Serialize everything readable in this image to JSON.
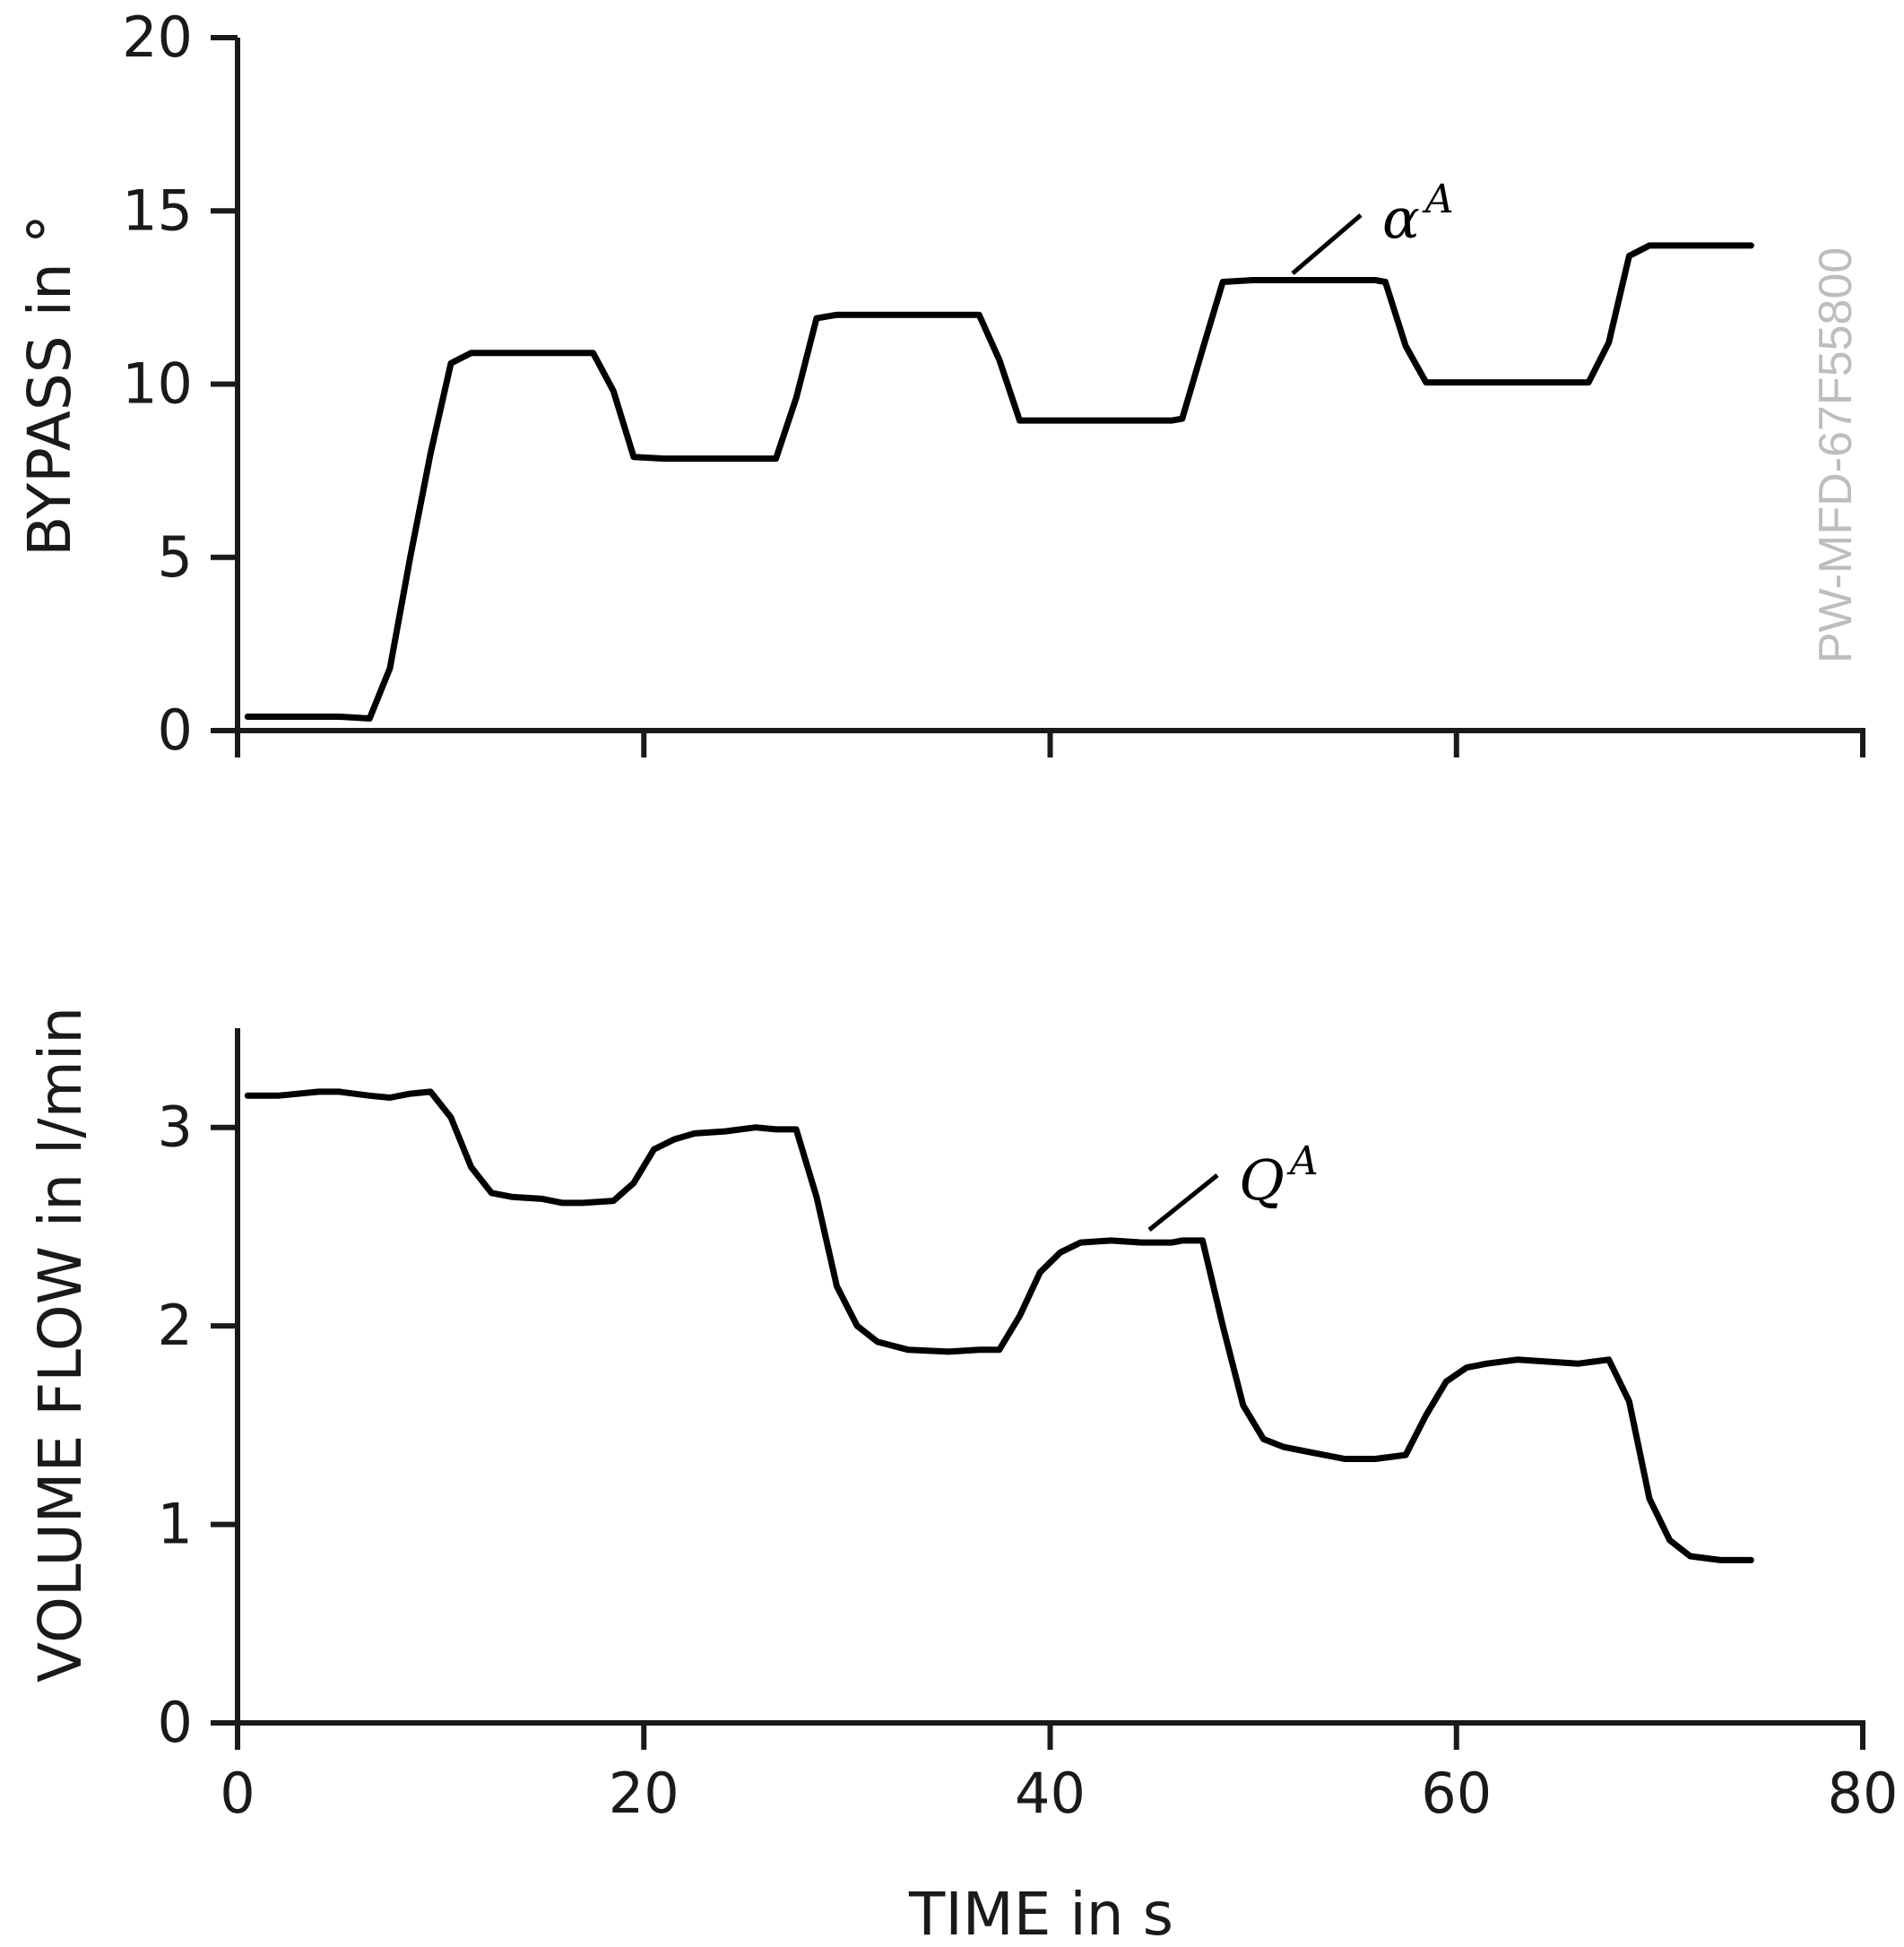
{
  "chart_data": [
    {
      "type": "line",
      "title": "",
      "xlabel": "",
      "ylabel": "BYPASS in °",
      "xlim": [
        0,
        80
      ],
      "ylim": [
        0,
        20
      ],
      "yticks": [
        0,
        5,
        10,
        15,
        20
      ],
      "xticks": [
        0,
        20,
        40,
        60,
        80
      ],
      "grid": false,
      "series": [
        {
          "name": "alpha-A",
          "label": "α",
          "label_sup": "A",
          "x": [
            0.5,
            2,
            4,
            5,
            6.5,
            7.5,
            8.5,
            9.5,
            10.5,
            11.5,
            13,
            15,
            17,
            17.5,
            18.5,
            19.5,
            21,
            23,
            25,
            26.5,
            27.5,
            28.5,
            29.5,
            31,
            33,
            35,
            36.5,
            37.5,
            38.5,
            40,
            42,
            44,
            46,
            46.5,
            47.5,
            48.5,
            50,
            52,
            54,
            56,
            56.5,
            57.5,
            58.5,
            60,
            62,
            64,
            66,
            66.5,
            67.5,
            68.5,
            69.5,
            71,
            73,
            74.5
          ],
          "y": [
            0.4,
            0.4,
            0.4,
            0.4,
            0.35,
            1.8,
            5,
            8,
            10.6,
            10.9,
            10.9,
            10.9,
            10.9,
            10.9,
            9.8,
            7.9,
            7.85,
            7.85,
            7.85,
            7.85,
            9.6,
            11.9,
            12.0,
            12.0,
            12.0,
            12.0,
            12.0,
            10.7,
            8.95,
            8.95,
            8.95,
            8.95,
            8.95,
            9.0,
            11.0,
            12.95,
            13.0,
            13.0,
            13.0,
            13.0,
            12.95,
            11.1,
            10.05,
            10.05,
            10.05,
            10.05,
            10.05,
            10.05,
            11.2,
            13.7,
            14.0,
            14.0,
            14.0,
            14.0
          ]
        }
      ]
    },
    {
      "type": "line",
      "title": "",
      "xlabel": "TIME in s",
      "ylabel": "VOLUME FLOW in l/min",
      "xlim": [
        0,
        80
      ],
      "ylim": [
        0,
        3.5
      ],
      "yticks": [
        0,
        1,
        2,
        3
      ],
      "xticks": [
        0,
        20,
        40,
        60,
        80
      ],
      "grid": false,
      "series": [
        {
          "name": "Q-A",
          "label": "Q",
          "label_sup": "A",
          "x": [
            0.5,
            2,
            4,
            5,
            6.5,
            7.5,
            8.5,
            9.5,
            10.5,
            11.5,
            12.5,
            13.5,
            15,
            16,
            17,
            18.5,
            19.5,
            20.5,
            21.5,
            22.5,
            24,
            25.5,
            26.5,
            27.5,
            28.5,
            29.5,
            30.5,
            31.5,
            33,
            35,
            36.5,
            37.5,
            38.5,
            39.5,
            40.5,
            41.5,
            43,
            44.5,
            46,
            46.5,
            47.5,
            48.5,
            49.5,
            50.5,
            51.5,
            53,
            54.5,
            56,
            57.5,
            58.5,
            59.5,
            60.5,
            61.5,
            63,
            64.5,
            66,
            67.5,
            68.5,
            69.5,
            70.5,
            71.5,
            73,
            74.5
          ],
          "y": [
            3.16,
            3.16,
            3.18,
            3.18,
            3.16,
            3.15,
            3.17,
            3.18,
            3.05,
            2.8,
            2.67,
            2.65,
            2.64,
            2.62,
            2.62,
            2.63,
            2.72,
            2.89,
            2.94,
            2.97,
            2.98,
            3.0,
            2.99,
            2.99,
            2.65,
            2.2,
            2.0,
            1.92,
            1.88,
            1.87,
            1.88,
            1.88,
            2.05,
            2.27,
            2.37,
            2.42,
            2.43,
            2.42,
            2.42,
            2.43,
            2.43,
            2.0,
            1.6,
            1.43,
            1.39,
            1.36,
            1.33,
            1.33,
            1.35,
            1.55,
            1.72,
            1.79,
            1.81,
            1.83,
            1.82,
            1.81,
            1.83,
            1.62,
            1.13,
            0.92,
            0.84,
            0.82,
            0.82
          ]
        }
      ]
    }
  ],
  "watermark": "PW-MFD-67F55800"
}
